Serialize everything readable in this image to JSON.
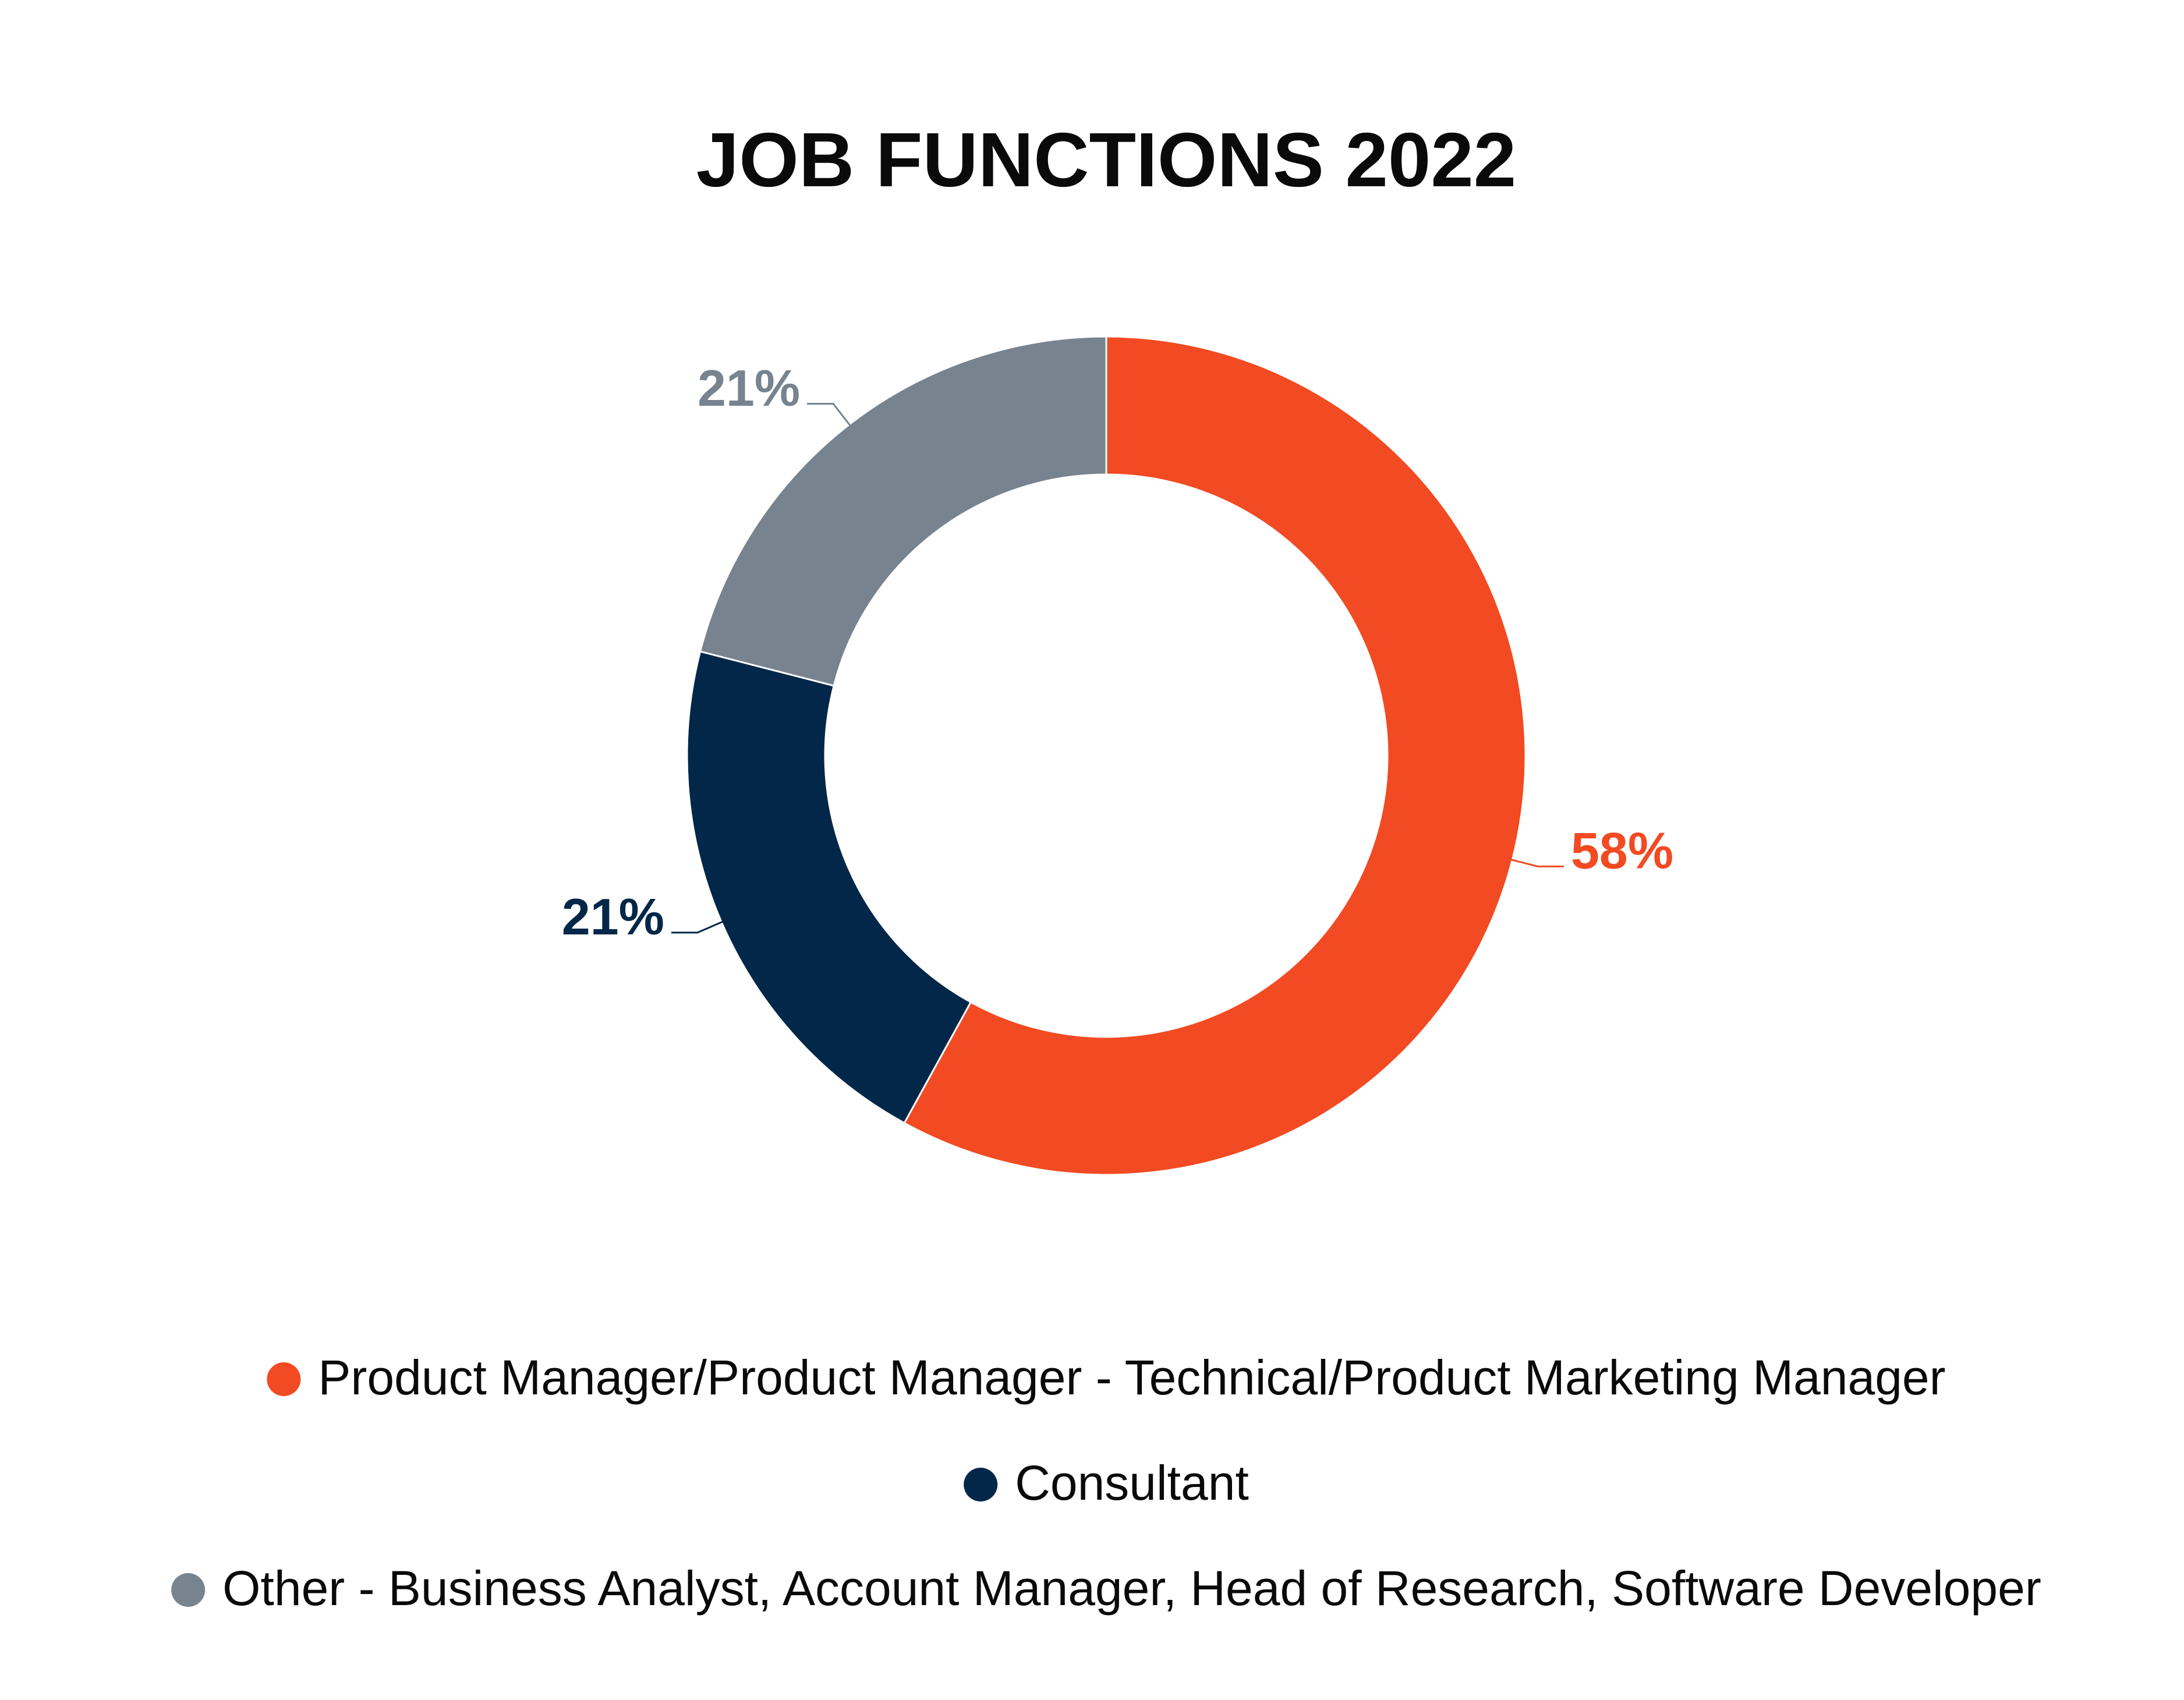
{
  "chart_data": {
    "type": "donut",
    "title": "JOB FUNCTIONS 2022",
    "categories": [
      "Product Manager/Product Manager - Technical/Product Marketing Manager",
      "Consultant",
      "Other - Business Analyst, Account Manager, Head of Research, Software Developer"
    ],
    "values": [
      58,
      21,
      21
    ],
    "value_labels": [
      "58%",
      "21%",
      "21%"
    ],
    "colors": [
      "#f24a22",
      "#022749",
      "#77838f"
    ]
  }
}
